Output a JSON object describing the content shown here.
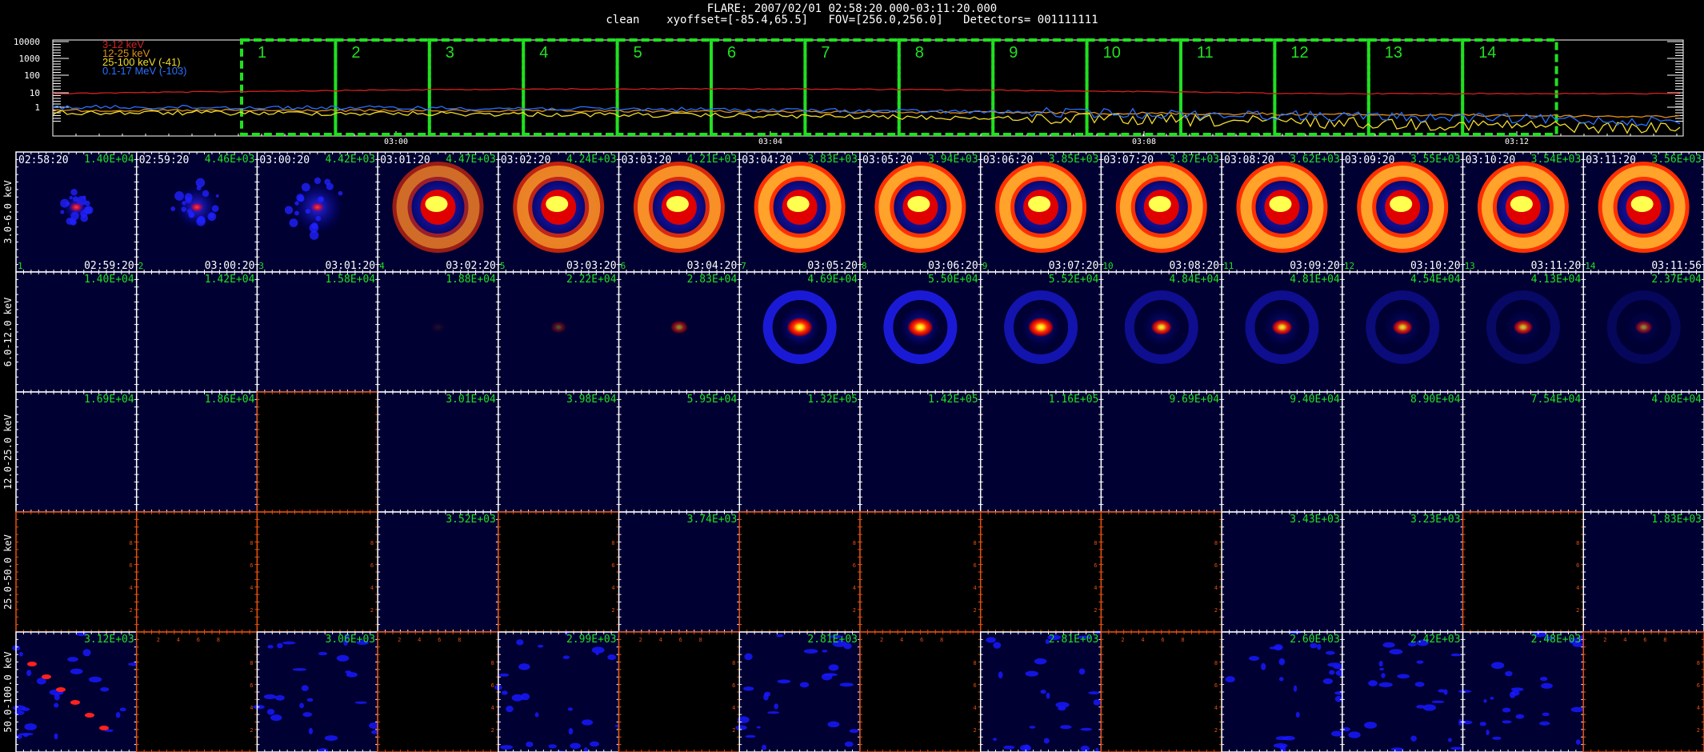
{
  "header": {
    "line1": "FLARE: 2007/02/01 02:58:20.000-03:11:20.000",
    "line2": "clean    xyoffset=[-85.4,65.5]   FOV=[256.0,256.0]   Detectors= 001111111"
  },
  "lightcurve": {
    "y_ticks": [
      "10000",
      "1000",
      "100",
      "10",
      "1"
    ],
    "x_ticks": [
      "03:00",
      "03:04",
      "03:08",
      "03:12"
    ],
    "legend": [
      {
        "text": "3-12 keV",
        "color": "#d42020"
      },
      {
        "text": "12-25 keV",
        "color": "#e0901a"
      },
      {
        "text": "25-100 keV (-41)",
        "color": "#f2dc2a"
      },
      {
        "text": "0.1-17 MeV (-103)",
        "color": "#2a70ff"
      }
    ],
    "intervals": [
      "1",
      "2",
      "3",
      "4",
      "5",
      "6",
      "7",
      "8",
      "9",
      "10",
      "11",
      "12",
      "13",
      "14"
    ],
    "interval_color": "#20e020"
  },
  "grid": {
    "rows": [
      "3.0-6.0 keV",
      "6.0-12.0 keV",
      "12.0-25.0 keV",
      "25.0-50.0 keV",
      "50.0-100.0 keV"
    ],
    "start_times": [
      "02:58:20",
      "02:59:20",
      "03:00:20",
      "03:01:20",
      "03:02:20",
      "03:03:20",
      "03:04:20",
      "03:05:20",
      "03:06:20",
      "03:07:20",
      "03:08:20",
      "03:09:20",
      "03:10:20",
      "03:11:20"
    ],
    "end_times": [
      "02:59:20",
      "03:00:20",
      "03:01:20",
      "03:02:20",
      "03:03:20",
      "03:04:20",
      "03:05:20",
      "03:06:20",
      "03:07:20",
      "03:08:20",
      "03:09:20",
      "03:10:20",
      "03:11:20",
      "03:11:56"
    ],
    "peaks": [
      [
        "1.40E+04",
        "4.46E+03",
        "4.42E+03",
        "4.47E+03",
        "4.24E+03",
        "4.21E+03",
        "3.83E+03",
        "3.94E+03",
        "3.85E+03",
        "3.87E+03",
        "3.62E+03",
        "3.55E+03",
        "3.54E+03",
        "3.56E+03"
      ],
      [
        "1.40E+04",
        "1.42E+04",
        "1.58E+04",
        "1.88E+04",
        "2.22E+04",
        "2.83E+04",
        "4.69E+04",
        "5.50E+04",
        "5.52E+04",
        "4.84E+04",
        "4.81E+04",
        "4.54E+04",
        "4.13E+04",
        "2.37E+04"
      ],
      [
        "1.69E+04",
        "1.86E+04",
        "",
        "3.01E+04",
        "3.98E+04",
        "5.95E+04",
        "1.32E+05",
        "1.42E+05",
        "1.16E+05",
        "9.69E+04",
        "9.40E+04",
        "8.90E+04",
        "7.54E+04",
        "4.08E+04"
      ],
      [
        "",
        "",
        "",
        "3.52E+03",
        "",
        "3.74E+03",
        "",
        "",
        "",
        "",
        "3.43E+03",
        "3.23E+03",
        "",
        "1.83E+03"
      ],
      [
        "3.12E+03",
        "",
        "3.06E+03",
        "",
        "2.99E+03",
        "",
        "2.81E+03",
        "",
        "2.81E+03",
        "",
        "2.60E+03",
        "2.42E+03",
        "2.48E+03",
        ""
      ]
    ],
    "tile_numbers": [
      "1",
      "2",
      "3",
      "4",
      "5",
      "6",
      "7",
      "8",
      "9",
      "10",
      "11",
      "12",
      "13",
      "14"
    ],
    "blank_tick_labels": [
      "2",
      "4",
      "6",
      "8"
    ],
    "colors": {
      "peak": "#20e020",
      "time": "#ffffff",
      "blank_axis": "#e05010",
      "bg_image": "#000032",
      "bg_blank": "#000000"
    }
  }
}
